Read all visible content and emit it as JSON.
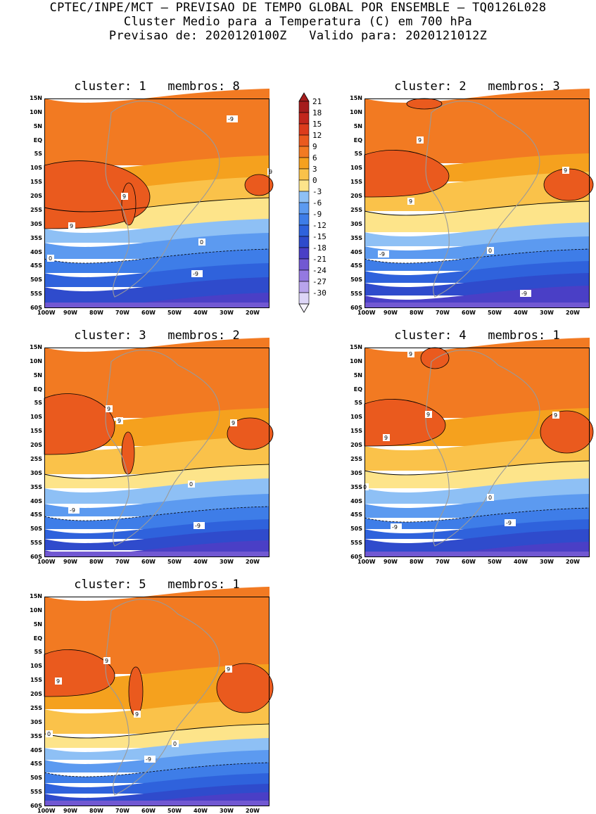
{
  "header": {
    "line1": "CPTEC/INPE/MCT — PREVISAO DE TEMPO GLOBAL POR ENSEMBLE — TQ0126L028",
    "line2": "Cluster Medio para a Temperatura (C) em 700 hPa",
    "line3": "Previsao de: 2020120100Z   Valido para: 2020121012Z"
  },
  "lat_labels": [
    "15N",
    "10N",
    "5N",
    "EQ",
    "5S",
    "10S",
    "15S",
    "20S",
    "25S",
    "30S",
    "35S",
    "40S",
    "45S",
    "50S",
    "55S",
    "60S"
  ],
  "lon_labels": [
    "100W",
    "90W",
    "80W",
    "70W",
    "60W",
    "50W",
    "40W",
    "30W",
    "20W"
  ],
  "colors": {
    "land_outline": "#9a9a9a",
    "scale": [
      {
        "label": "21",
        "color": "#a51c1c"
      },
      {
        "label": "18",
        "color": "#c2261c"
      },
      {
        "label": "15",
        "color": "#dc3c1c"
      },
      {
        "label": "12",
        "color": "#ea5a1e"
      },
      {
        "label": "9",
        "color": "#f27a22"
      },
      {
        "label": "6",
        "color": "#f5a11e"
      },
      {
        "label": "3",
        "color": "#fac24a"
      },
      {
        "label": "0",
        "color": "#fde48a"
      },
      {
        "label": "-3",
        "color": "#8ec0f5"
      },
      {
        "label": "-6",
        "color": "#5c9af0"
      },
      {
        "label": "-9",
        "color": "#3e7de8"
      },
      {
        "label": "-12",
        "color": "#2f62dc"
      },
      {
        "label": "-15",
        "color": "#2f4bcc"
      },
      {
        "label": "-18",
        "color": "#4a3fc6"
      },
      {
        "label": "-21",
        "color": "#7158d2"
      },
      {
        "label": "-24",
        "color": "#9479e0"
      },
      {
        "label": "-27",
        "color": "#b8a4ec"
      },
      {
        "label": "-30",
        "color": "#ddd5f7"
      }
    ]
  },
  "panels": [
    {
      "id": 1,
      "title": "cluster: 1   membros: 8",
      "contour_labels": [
        "9",
        "9",
        "9",
        "0",
        "0",
        "-9",
        "-9"
      ]
    },
    {
      "id": 2,
      "title": "cluster: 2   membros: 3",
      "contour_labels": [
        "9",
        "9",
        "9",
        "0",
        "-9",
        "-9"
      ]
    },
    {
      "id": 3,
      "title": "cluster: 3   membros: 2",
      "contour_labels": [
        "9",
        "9",
        "9",
        "0",
        "-9",
        "-9"
      ]
    },
    {
      "id": 4,
      "title": "cluster: 4   membros: 1",
      "contour_labels": [
        "9",
        "9",
        "9",
        "9",
        "0",
        "0",
        "-9",
        "-9"
      ]
    },
    {
      "id": 5,
      "title": "cluster: 5   membros: 1",
      "contour_labels": [
        "9",
        "9",
        "9",
        "9",
        "0",
        "0",
        "-9"
      ]
    }
  ]
}
